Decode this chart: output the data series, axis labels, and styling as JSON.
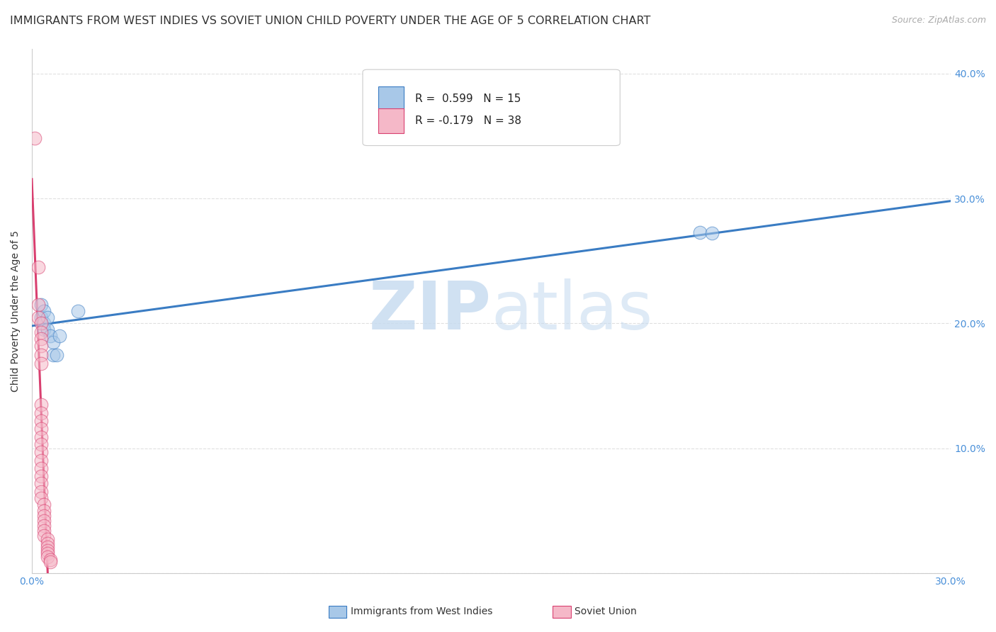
{
  "title": "IMMIGRANTS FROM WEST INDIES VS SOVIET UNION CHILD POVERTY UNDER THE AGE OF 5 CORRELATION CHART",
  "source": "Source: ZipAtlas.com",
  "ylabel": "Child Poverty Under the Age of 5",
  "watermark": "ZIPatlas",
  "R_blue": 0.599,
  "N_blue": 15,
  "R_pink": -0.179,
  "N_pink": 38,
  "blue_color": "#A8C8E8",
  "pink_color": "#F5B8C8",
  "blue_line_color": "#3A7CC3",
  "pink_line_color": "#D94070",
  "blue_scatter": [
    [
      0.003,
      0.215
    ],
    [
      0.003,
      0.205
    ],
    [
      0.004,
      0.21
    ],
    [
      0.004,
      0.2
    ],
    [
      0.004,
      0.195
    ],
    [
      0.005,
      0.205
    ],
    [
      0.005,
      0.195
    ],
    [
      0.006,
      0.19
    ],
    [
      0.007,
      0.185
    ],
    [
      0.007,
      0.175
    ],
    [
      0.008,
      0.175
    ],
    [
      0.009,
      0.19
    ],
    [
      0.015,
      0.21
    ],
    [
      0.218,
      0.273
    ],
    [
      0.222,
      0.272
    ]
  ],
  "pink_scatter": [
    [
      0.001,
      0.348
    ],
    [
      0.002,
      0.245
    ],
    [
      0.002,
      0.215
    ],
    [
      0.002,
      0.205
    ],
    [
      0.003,
      0.2
    ],
    [
      0.003,
      0.193
    ],
    [
      0.003,
      0.188
    ],
    [
      0.003,
      0.182
    ],
    [
      0.003,
      0.175
    ],
    [
      0.003,
      0.168
    ],
    [
      0.003,
      0.135
    ],
    [
      0.003,
      0.128
    ],
    [
      0.003,
      0.122
    ],
    [
      0.003,
      0.116
    ],
    [
      0.003,
      0.109
    ],
    [
      0.003,
      0.103
    ],
    [
      0.003,
      0.097
    ],
    [
      0.003,
      0.09
    ],
    [
      0.003,
      0.084
    ],
    [
      0.003,
      0.078
    ],
    [
      0.003,
      0.072
    ],
    [
      0.003,
      0.065
    ],
    [
      0.003,
      0.06
    ],
    [
      0.004,
      0.055
    ],
    [
      0.004,
      0.05
    ],
    [
      0.004,
      0.046
    ],
    [
      0.004,
      0.042
    ],
    [
      0.004,
      0.038
    ],
    [
      0.004,
      0.034
    ],
    [
      0.004,
      0.03
    ],
    [
      0.005,
      0.027
    ],
    [
      0.005,
      0.024
    ],
    [
      0.005,
      0.021
    ],
    [
      0.005,
      0.018
    ],
    [
      0.005,
      0.016
    ],
    [
      0.005,
      0.013
    ],
    [
      0.006,
      0.011
    ],
    [
      0.006,
      0.009
    ]
  ],
  "xlim": [
    0,
    0.3
  ],
  "ylim": [
    0,
    0.42
  ],
  "xticks": [
    0.0,
    0.05,
    0.1,
    0.15,
    0.2,
    0.25,
    0.3
  ],
  "yticks": [
    0.0,
    0.1,
    0.2,
    0.3,
    0.4
  ],
  "background_color": "#FFFFFF",
  "grid_color": "#E0E0E0",
  "title_fontsize": 11.5,
  "axis_label_fontsize": 10,
  "tick_fontsize": 10,
  "scatter_size": 180,
  "scatter_alpha": 0.55,
  "scatter_linewidth": 0.8
}
